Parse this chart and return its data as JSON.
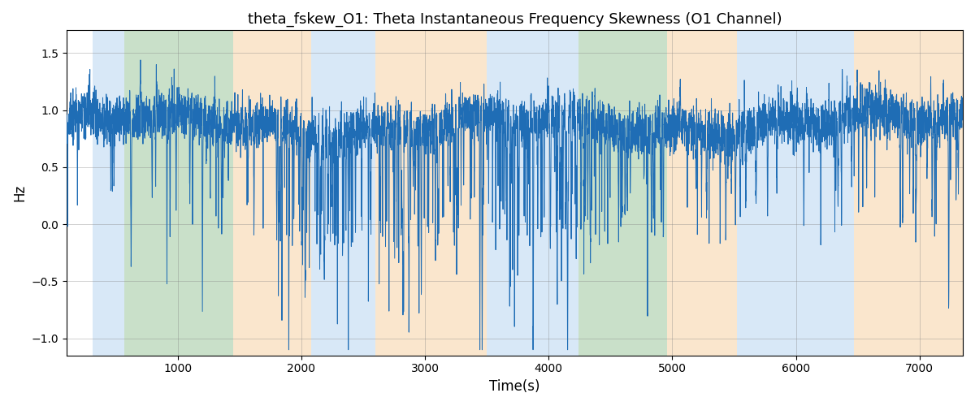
{
  "title": "theta_fskew_O1: Theta Instantaneous Frequency Skewness (O1 Channel)",
  "xlabel": "Time(s)",
  "ylabel": "Hz",
  "xlim": [
    100,
    7350
  ],
  "ylim": [
    -1.15,
    1.7
  ],
  "yticks": [
    -1.0,
    -0.5,
    0.0,
    0.5,
    1.0,
    1.5
  ],
  "xticks": [
    1000,
    2000,
    3000,
    4000,
    5000,
    6000,
    7000
  ],
  "line_color": "#1f6db5",
  "line_width": 0.7,
  "background_color": "#ffffff",
  "bands": [
    {
      "xmin": 310,
      "xmax": 570,
      "color": "#aaccee",
      "alpha": 0.45
    },
    {
      "xmin": 570,
      "xmax": 1450,
      "color": "#88bb88",
      "alpha": 0.45
    },
    {
      "xmin": 1450,
      "xmax": 2080,
      "color": "#f5c890",
      "alpha": 0.45
    },
    {
      "xmin": 2080,
      "xmax": 2600,
      "color": "#aaccee",
      "alpha": 0.45
    },
    {
      "xmin": 2600,
      "xmax": 3500,
      "color": "#f5c890",
      "alpha": 0.45
    },
    {
      "xmin": 3500,
      "xmax": 4160,
      "color": "#aaccee",
      "alpha": 0.45
    },
    {
      "xmin": 4160,
      "xmax": 4240,
      "color": "#aaccee",
      "alpha": 0.45
    },
    {
      "xmin": 4240,
      "xmax": 4960,
      "color": "#88bb88",
      "alpha": 0.45
    },
    {
      "xmin": 4960,
      "xmax": 5520,
      "color": "#f5c890",
      "alpha": 0.45
    },
    {
      "xmin": 5520,
      "xmax": 6470,
      "color": "#aaccee",
      "alpha": 0.45
    },
    {
      "xmin": 6470,
      "xmax": 7350,
      "color": "#f5c890",
      "alpha": 0.45
    }
  ],
  "seed": 2023,
  "n_points": 7250
}
